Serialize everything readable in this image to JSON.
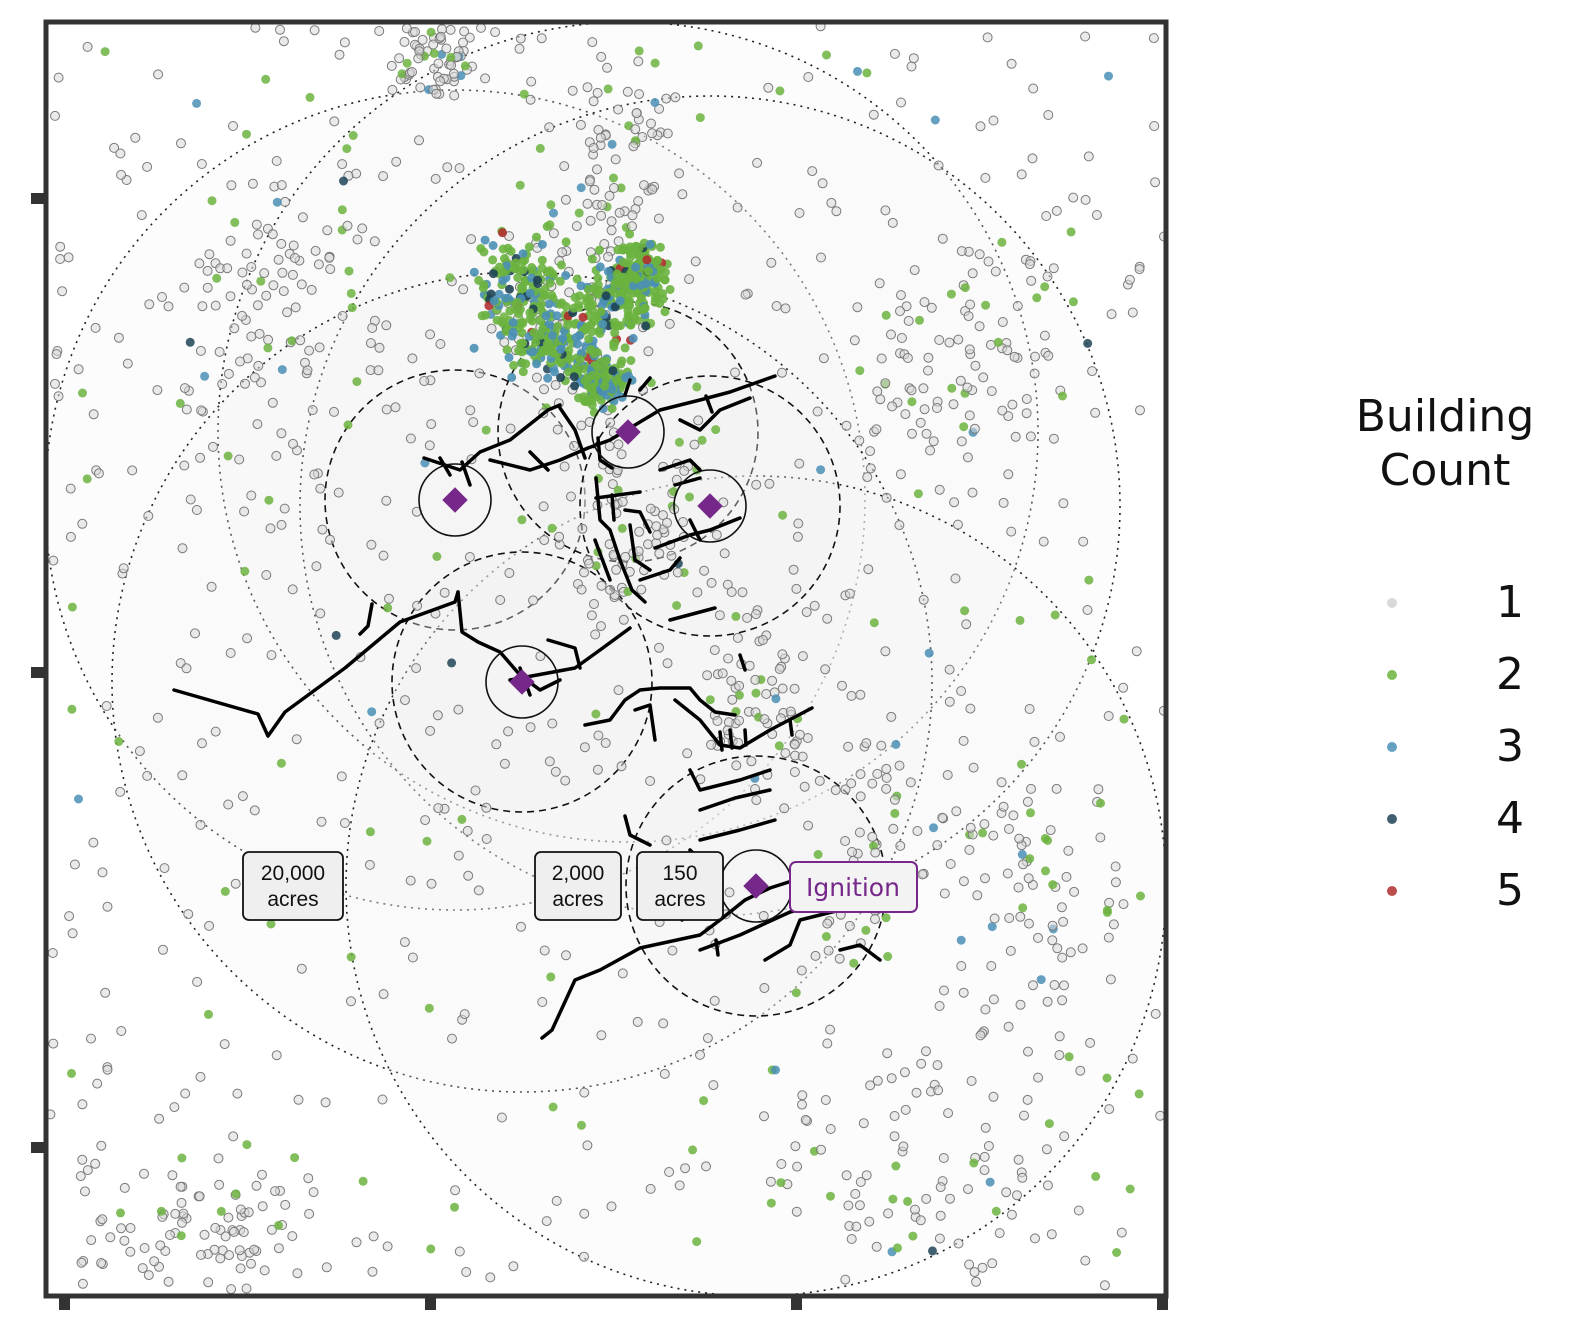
{
  "map": {
    "area_labels": [
      {
        "line1": "20,000",
        "line2": "acres"
      },
      {
        "line1": "2,000",
        "line2": "acres"
      },
      {
        "line1": "150",
        "line2": "acres"
      }
    ],
    "ignition_label": "Ignition",
    "ignition_color": "#76288a",
    "road_color": "#000000",
    "frame_color": "#333333"
  },
  "legend": {
    "title_line1": "Building",
    "title_line2": "Count",
    "items": [
      {
        "label": "1",
        "color": "#d9d9d9"
      },
      {
        "label": "2",
        "color": "#6cb33f"
      },
      {
        "label": "3",
        "color": "#4a8fb5"
      },
      {
        "label": "4",
        "color": "#1e4456"
      },
      {
        "label": "5",
        "color": "#b0302f"
      }
    ]
  }
}
